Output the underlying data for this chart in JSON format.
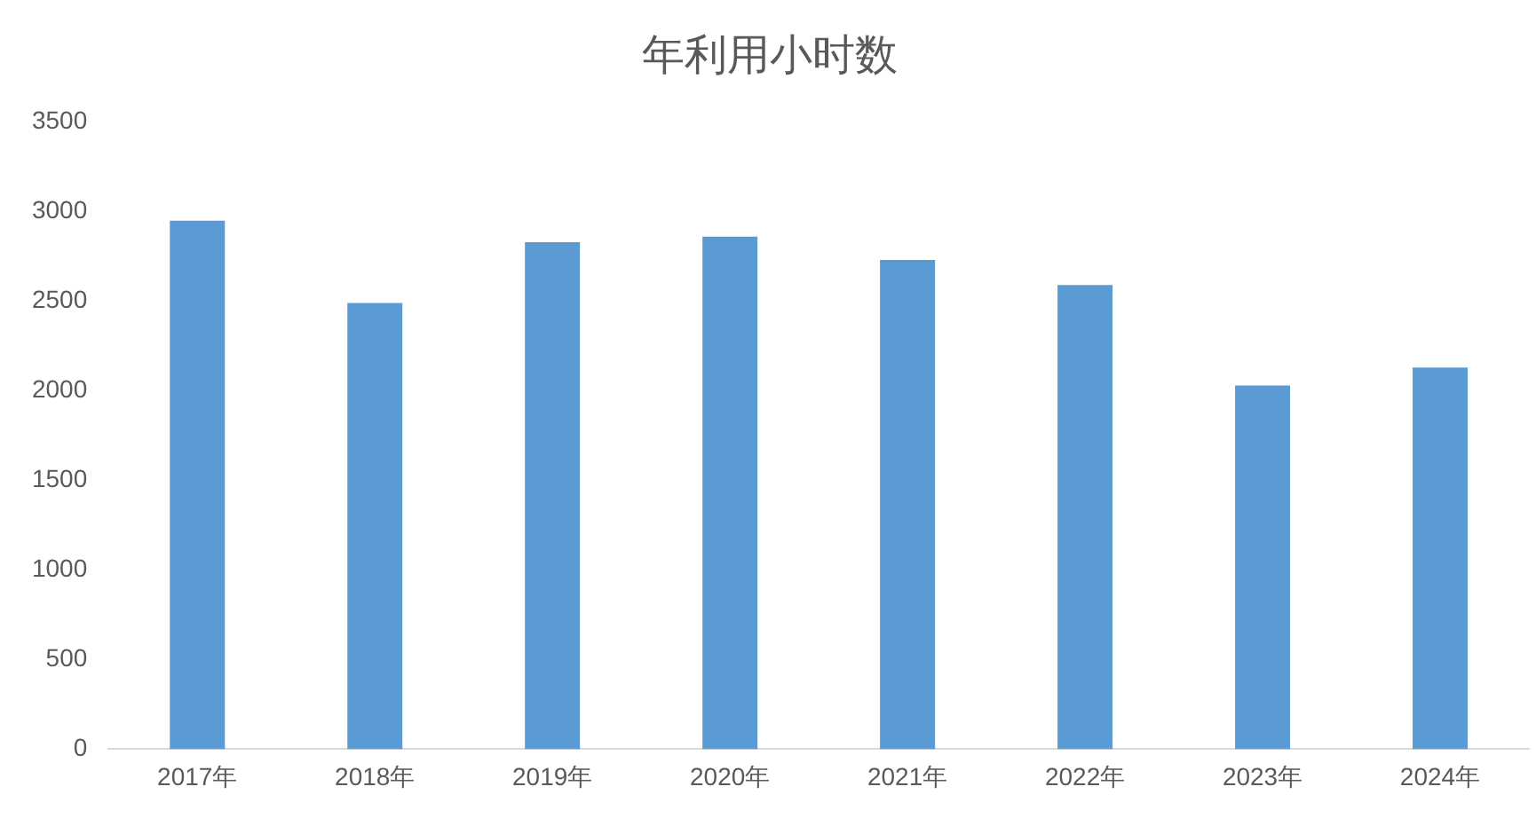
{
  "chart_data": {
    "type": "bar",
    "title": "年利用小时数",
    "categories": [
      "2017年",
      "2018年",
      "2019年",
      "2020年",
      "2021年",
      "2022年",
      "2023年",
      "2024年"
    ],
    "values": [
      2950,
      2490,
      2830,
      2860,
      2730,
      2590,
      2030,
      2130
    ],
    "color": "#5b9bd5",
    "ylim": [
      0,
      3500
    ],
    "yticks": [
      0,
      500,
      1000,
      1500,
      2000,
      2500,
      3000,
      3500
    ]
  }
}
